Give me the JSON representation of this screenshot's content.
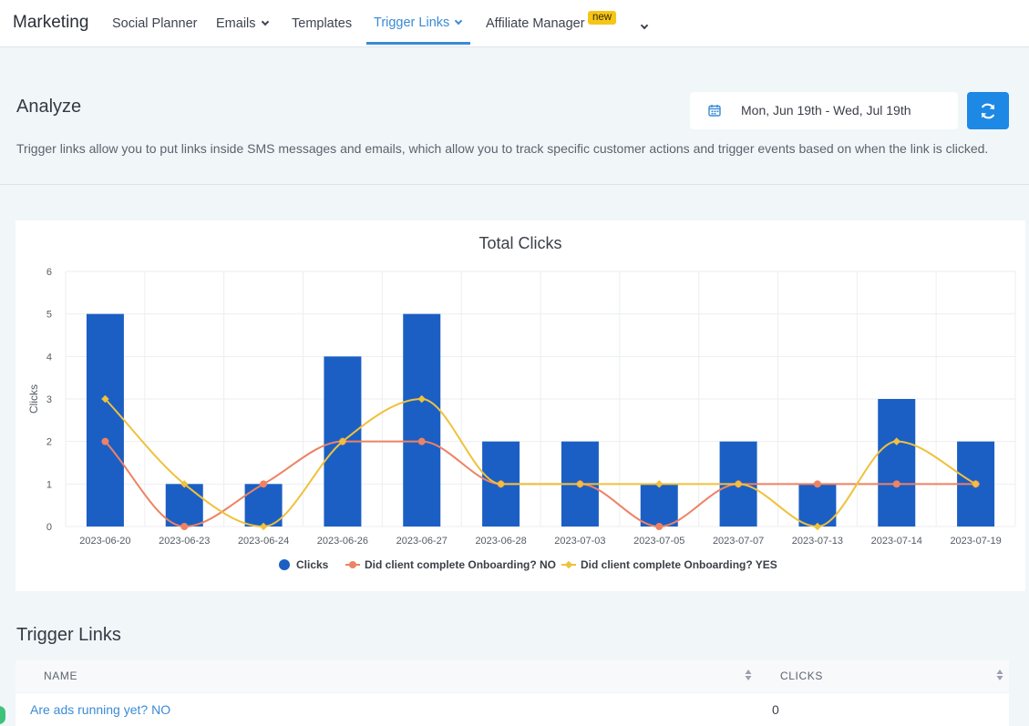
{
  "header": {
    "brand": "Marketing",
    "nav": [
      {
        "label": "Social Planner"
      },
      {
        "label": "Emails"
      },
      {
        "label": "Templates"
      },
      {
        "label": "Trigger Links"
      },
      {
        "label": "Affiliate Manager"
      }
    ],
    "new_badge": "new"
  },
  "analyze": {
    "title": "Analyze",
    "date_range": "Mon, Jun 19th - Wed, Jul 19th",
    "description": "Trigger links allow you to put links inside SMS messages and emails, which allow you to track specific customer actions and trigger events based on when the link is clicked."
  },
  "chart_data": {
    "type": "bar",
    "title": "Total Clicks",
    "xlabel": "",
    "ylabel": "Clicks",
    "ylim": [
      0,
      6
    ],
    "yticks": [
      0,
      1,
      2,
      3,
      4,
      5,
      6
    ],
    "grid": true,
    "legend_position": "bottom",
    "categories": [
      "2023-06-20",
      "2023-06-23",
      "2023-06-24",
      "2023-06-26",
      "2023-06-27",
      "2023-06-28",
      "2023-07-03",
      "2023-07-05",
      "2023-07-07",
      "2023-07-13",
      "2023-07-14",
      "2023-07-19"
    ],
    "series": [
      {
        "name": "Clicks",
        "type": "bar",
        "color": "#1b5fc4",
        "values": [
          5,
          1,
          1,
          4,
          5,
          2,
          2,
          1,
          2,
          1,
          3,
          2
        ]
      },
      {
        "name": "Did client complete Onboarding? NO",
        "type": "line",
        "color": "#ee8264",
        "values": [
          2,
          0,
          1,
          2,
          2,
          1,
          1,
          0,
          1,
          1,
          1,
          1
        ]
      },
      {
        "name": "Did client complete Onboarding? YES",
        "type": "line",
        "color": "#f0c13c",
        "values": [
          3,
          1,
          0,
          2,
          3,
          1,
          1,
          1,
          1,
          0,
          2,
          1
        ]
      }
    ]
  },
  "trigger_links": {
    "title": "Trigger Links",
    "columns": [
      "NAME",
      "CLICKS"
    ],
    "rows": [
      {
        "name": "Are ads running yet? NO",
        "clicks": "0"
      }
    ]
  }
}
